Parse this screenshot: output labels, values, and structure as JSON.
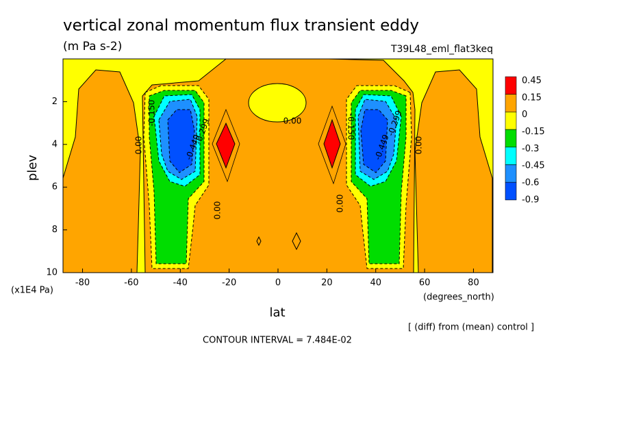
{
  "chart_data": {
    "type": "contour",
    "title": "vertical zonal momentum flux transient eddy",
    "subtitle": "(m Pa s-2)",
    "dataset": "T39L48_eml_flat3keq",
    "x_label": "lat",
    "x_units": "(degrees_north)",
    "y_label": "plev",
    "y_units": "(x1E4 Pa)",
    "xlim": [
      -88,
      88
    ],
    "xticks": [
      -80,
      -60,
      -40,
      -20,
      0,
      20,
      40,
      60,
      80
    ],
    "ylim": [
      0,
      10
    ],
    "y_inverted": true,
    "yticks": [
      2,
      4,
      6,
      8,
      10
    ],
    "levels": [
      0.45,
      0.15,
      0,
      -0.15,
      -0.3,
      -0.45,
      -0.6,
      -0.9
    ],
    "colors": [
      "#ff0000",
      "#ffa500",
      "#ffff00",
      "#00dd00",
      "#00ffff",
      "#1e90ff",
      "#0050ff"
    ],
    "contour_labels": [
      "0.00",
      "-0.150",
      "-0.299",
      "-0.449",
      "0.00",
      "0.00",
      "0.00",
      "-0.150",
      "-0.449",
      "-0.299",
      "0.00"
    ],
    "contour_interval": "CONTOUR INTERVAL = 7.484E-02",
    "note": "[ (diff) from (mean) control ]"
  }
}
